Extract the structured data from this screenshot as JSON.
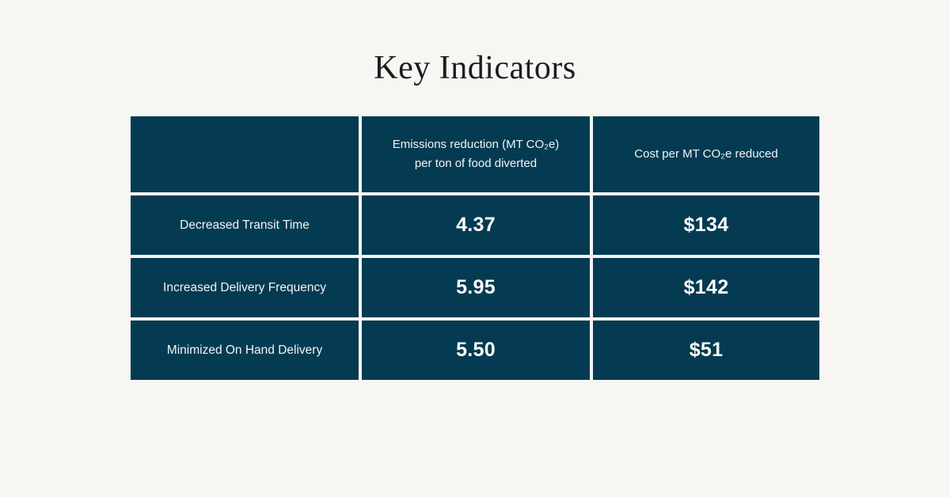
{
  "title": "Key Indicators",
  "colors": {
    "bg": "#f7f6f3",
    "cell": "#043b52",
    "title": "#1c1d1f",
    "label-text": "#f2f4f5",
    "value-text": "#ffffff"
  },
  "table": {
    "columns": [
      "",
      "Emissions reduction (MT CO₂e)\nper ton of food diverted",
      "Cost per MT CO₂e reduced"
    ],
    "rows": [
      {
        "label": "Decreased Transit Time",
        "emissions": "4.37",
        "cost": "$134"
      },
      {
        "label": "Increased Delivery Frequency",
        "emissions": "5.95",
        "cost": "$142"
      },
      {
        "label": "Minimized On Hand Delivery",
        "emissions": "5.50",
        "cost": "$51"
      }
    ]
  },
  "chart_data": {
    "type": "table",
    "title": "Key Indicators",
    "categories": [
      "Decreased Transit Time",
      "Increased Delivery Frequency",
      "Minimized On Hand Delivery"
    ],
    "series": [
      {
        "name": "Emissions reduction (MT CO₂e) per ton of food diverted",
        "values": [
          4.37,
          5.95,
          5.5
        ]
      },
      {
        "name": "Cost per MT CO₂e reduced ($)",
        "values": [
          134,
          142,
          51
        ]
      }
    ],
    "legend_position": "none",
    "grid": false
  }
}
